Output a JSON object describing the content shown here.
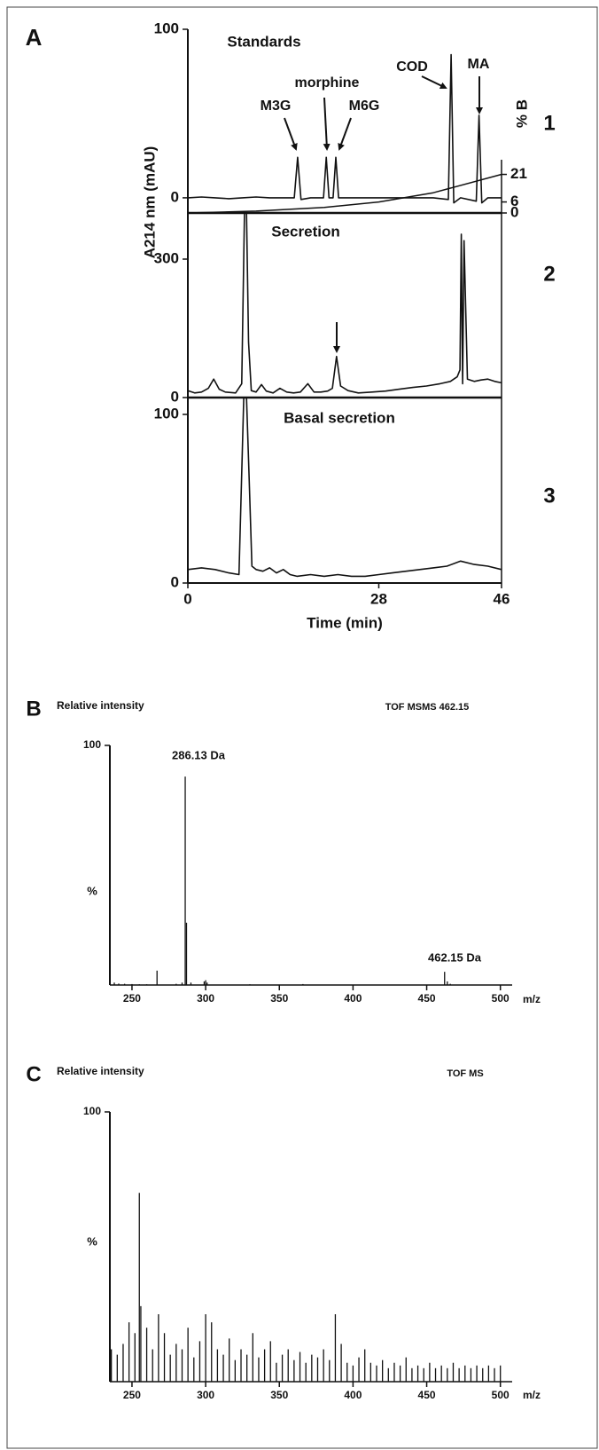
{
  "chart_data": [
    {
      "type": "line",
      "panel": "A",
      "title": "Standards",
      "ylabel": "A214 nm (mAU)",
      "y2label": "% B",
      "panel_number": "1",
      "annotations": [
        "M3G",
        "morphine",
        "M6G",
        "COD",
        "MA"
      ],
      "xlim": [
        0,
        46
      ],
      "ylim": [
        -9,
        100
      ],
      "yticks": [
        0,
        100
      ],
      "y2lim": [
        0,
        100
      ],
      "y2ticks": [
        0,
        6,
        21
      ],
      "series": [
        {
          "color": "#111111",
          "x": [
            0,
            2,
            4,
            6,
            8,
            10,
            12,
            14,
            15.6,
            16.1,
            16.6,
            18,
            19.9,
            20.3,
            20.7,
            21.3,
            21.7,
            22.1,
            24,
            26,
            28,
            30,
            32,
            34,
            36,
            38.2,
            38.6,
            39.0,
            40,
            42.3,
            42.7,
            43.1,
            44,
            46
          ],
          "values": [
            0,
            0.5,
            0,
            -0.5,
            0,
            0.5,
            0,
            0,
            0,
            24,
            -1,
            0,
            0,
            24,
            0,
            0,
            24,
            0,
            0,
            0,
            0,
            0,
            0,
            0,
            0,
            -1,
            85,
            -3,
            0,
            -2,
            49,
            -3,
            0,
            0
          ]
        },
        {
          "color": "#111111",
          "axis": "y2",
          "x": [
            0,
            10,
            20,
            28,
            36,
            46
          ],
          "values": [
            0,
            1,
            3,
            6,
            11,
            21
          ]
        }
      ]
    },
    {
      "type": "line",
      "title": "Secretion",
      "panel_number": "2",
      "xlim": [
        0,
        46
      ],
      "ylim": [
        0,
        400
      ],
      "yticks": [
        0,
        300
      ],
      "series": [
        {
          "color": "#111111",
          "x": [
            0,
            1,
            2,
            3,
            3.8,
            4.6,
            5.5,
            7,
            7.9,
            8.3,
            8.6,
            8.9,
            9.3,
            10,
            10.8,
            11.5,
            12.5,
            13.5,
            14.5,
            15.5,
            16.5,
            17.6,
            18.5,
            19.5,
            20.5,
            21.2,
            21.8,
            22.4,
            23.5,
            25,
            27,
            29,
            31,
            33,
            35,
            37,
            38.5,
            39.5,
            39.9,
            40.1,
            40.3,
            40.5,
            41,
            42,
            43,
            44,
            45,
            46
          ],
          "values": [
            15,
            10,
            12,
            20,
            40,
            18,
            12,
            10,
            30,
            400,
            400,
            120,
            15,
            12,
            28,
            14,
            10,
            20,
            12,
            10,
            12,
            30,
            12,
            12,
            14,
            20,
            89,
            25,
            15,
            10,
            12,
            14,
            18,
            22,
            25,
            30,
            35,
            45,
            60,
            354,
            30,
            340,
            40,
            35,
            38,
            40,
            35,
            32
          ]
        }
      ]
    },
    {
      "type": "line",
      "title": "Basal secretion",
      "panel_number": "3",
      "xlabel": "Time (min)",
      "xlim": [
        0,
        46
      ],
      "xticks": [
        0,
        28,
        46
      ],
      "ylim": [
        0,
        110
      ],
      "yticks": [
        0,
        100
      ],
      "series": [
        {
          "color": "#111111",
          "x": [
            0,
            2,
            4,
            6,
            7.5,
            8.2,
            8.6,
            9.0,
            9.4,
            10,
            11,
            12,
            13,
            14,
            15,
            16,
            18,
            20,
            22,
            24,
            26,
            28,
            30,
            32,
            34,
            36,
            38,
            40,
            42,
            44,
            46
          ],
          "values": [
            8,
            9,
            8,
            6,
            5,
            110,
            110,
            60,
            10,
            8,
            7,
            9,
            6,
            8,
            5,
            4,
            5,
            4,
            5,
            4,
            4,
            5,
            6,
            7,
            8,
            9,
            10,
            13,
            11,
            10,
            8
          ]
        }
      ]
    },
    {
      "type": "spectrum",
      "panel": "B",
      "ytitle": "Relative intensity",
      "title": "TOF MSMS 462.15",
      "ylabel": "%",
      "xlabel": "m/z",
      "annotations": [
        "286.13 Da",
        "462.15 Da"
      ],
      "xlim": [
        235,
        508
      ],
      "xticks": [
        250,
        300,
        350,
        400,
        450,
        500
      ],
      "ylim": [
        0,
        100
      ],
      "yticks": [
        100
      ],
      "color": "#111111",
      "x": [
        238,
        241,
        245,
        250,
        255,
        260,
        267,
        280,
        284,
        286.13,
        287,
        290,
        299,
        300,
        301,
        330,
        350,
        366,
        462.15,
        464,
        466
      ],
      "values": [
        1,
        0.6,
        0.5,
        0.4,
        0.3,
        0.3,
        6,
        0.5,
        1,
        87,
        26,
        1,
        1.5,
        2,
        1,
        0.3,
        0.2,
        0.4,
        5.5,
        1.5,
        0.5
      ]
    },
    {
      "type": "spectrum",
      "panel": "C",
      "ytitle": "Relative intensity",
      "title": "TOF MS",
      "ylabel": "%",
      "xlabel": "m/z",
      "xlim": [
        235,
        508
      ],
      "xticks": [
        250,
        300,
        350,
        400,
        450,
        500
      ],
      "ylim": [
        0,
        100
      ],
      "yticks": [
        100
      ],
      "color": "#111111",
      "x": [
        236,
        240,
        244,
        248,
        252,
        255,
        256,
        260,
        264,
        268,
        272,
        276,
        280,
        284,
        288,
        292,
        296,
        300,
        304,
        308,
        312,
        316,
        320,
        324,
        328,
        332,
        336,
        340,
        344,
        348,
        352,
        356,
        360,
        364,
        368,
        372,
        376,
        380,
        384,
        388,
        392,
        396,
        400,
        404,
        408,
        412,
        416,
        420,
        424,
        428,
        432,
        436,
        440,
        444,
        448,
        452,
        456,
        460,
        464,
        468,
        472,
        476,
        480,
        484,
        488,
        492,
        496,
        500
      ],
      "values": [
        12,
        10,
        14,
        22,
        18,
        70,
        28,
        20,
        12,
        25,
        18,
        10,
        14,
        12,
        20,
        9,
        15,
        25,
        22,
        12,
        10,
        16,
        8,
        12,
        10,
        18,
        9,
        12,
        15,
        7,
        10,
        12,
        8,
        11,
        7,
        10,
        9,
        12,
        8,
        25,
        14,
        7,
        6,
        9,
        12,
        7,
        6,
        8,
        5,
        7,
        6,
        9,
        5,
        6,
        5,
        7,
        5,
        6,
        5,
        7,
        5,
        6,
        5,
        6,
        5,
        6,
        5,
        6
      ]
    }
  ]
}
